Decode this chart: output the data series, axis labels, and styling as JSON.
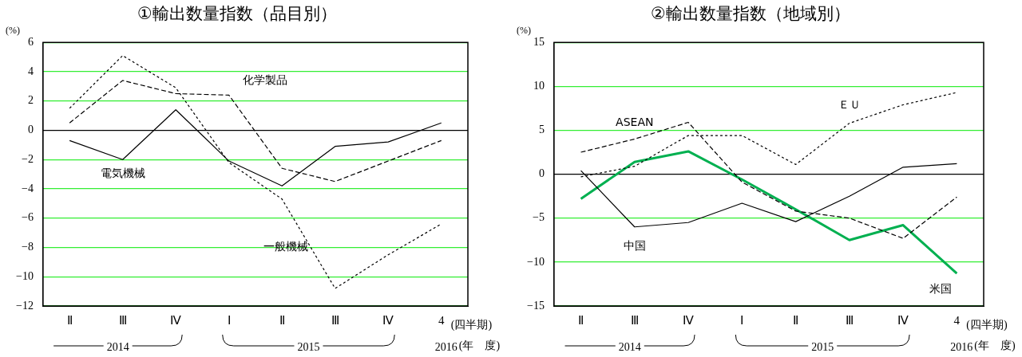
{
  "chart_data": [
    {
      "type": "line",
      "title": "①輸出数量指数（品目別）",
      "ylabel": "(%)",
      "categories": [
        "Ⅱ",
        "Ⅲ",
        "Ⅳ",
        "Ⅰ",
        "Ⅱ",
        "Ⅲ",
        "Ⅳ",
        "4"
      ],
      "ylim": [
        -12,
        6
      ],
      "yticks": [
        -12,
        -10,
        -8,
        -6,
        -4,
        -2,
        0,
        2,
        4,
        6
      ],
      "grid": "y",
      "legend": false,
      "marker": "none",
      "annotations": [
        "(四半期)",
        "2014",
        "2015",
        "2016",
        "(年　度)"
      ],
      "series": [
        {
          "name": "電気機械",
          "color": "#000000",
          "line_style": "solid",
          "values": [
            -0.7,
            -2.0,
            1.4,
            -2.1,
            -3.8,
            -1.1,
            -0.8,
            0.5
          ]
        },
        {
          "name": "化学製品",
          "color": "#000000",
          "line_style": "dashed",
          "values": [
            0.5,
            3.4,
            2.5,
            2.4,
            -2.6,
            -3.5,
            -2.1,
            -0.7
          ]
        },
        {
          "name": "一般機械",
          "color": "#000000",
          "line_style": "dotted",
          "values": [
            1.5,
            5.1,
            2.9,
            -2.2,
            -4.7,
            -10.8,
            -8.5,
            -6.4
          ]
        }
      ]
    },
    {
      "type": "line",
      "title": "②輸出数量指数（地域別）",
      "ylabel": "(%)",
      "categories": [
        "Ⅱ",
        "Ⅲ",
        "Ⅳ",
        "Ⅰ",
        "Ⅱ",
        "Ⅲ",
        "Ⅳ",
        "4"
      ],
      "ylim": [
        -15,
        15
      ],
      "yticks": [
        -15,
        -10,
        -5,
        0,
        5,
        10,
        15
      ],
      "grid": "y",
      "legend": false,
      "marker": "none",
      "annotations": [
        "(四半期)",
        "2014",
        "2015",
        "2016",
        "(年　度)"
      ],
      "series": [
        {
          "name": "ASEAN",
          "color": "#000000",
          "line_style": "dashed",
          "values": [
            2.5,
            4.0,
            5.9,
            -0.9,
            -4.2,
            -5.0,
            -7.3,
            -2.6
          ]
        },
        {
          "name": "ＥＵ",
          "color": "#000000",
          "line_style": "dotted",
          "values": [
            -0.3,
            0.9,
            4.4,
            4.4,
            1.1,
            5.8,
            7.9,
            9.3
          ]
        },
        {
          "name": "中国",
          "color": "#000000",
          "line_style": "solid",
          "values": [
            0.4,
            -6.0,
            -5.5,
            -3.3,
            -5.4,
            -2.5,
            0.8,
            1.2
          ]
        },
        {
          "name": "米国",
          "color": "#00b050",
          "line_style": "solid",
          "values": [
            -2.8,
            1.4,
            2.6,
            -0.6,
            -4.0,
            -7.5,
            -5.8,
            -11.3
          ]
        }
      ]
    }
  ]
}
